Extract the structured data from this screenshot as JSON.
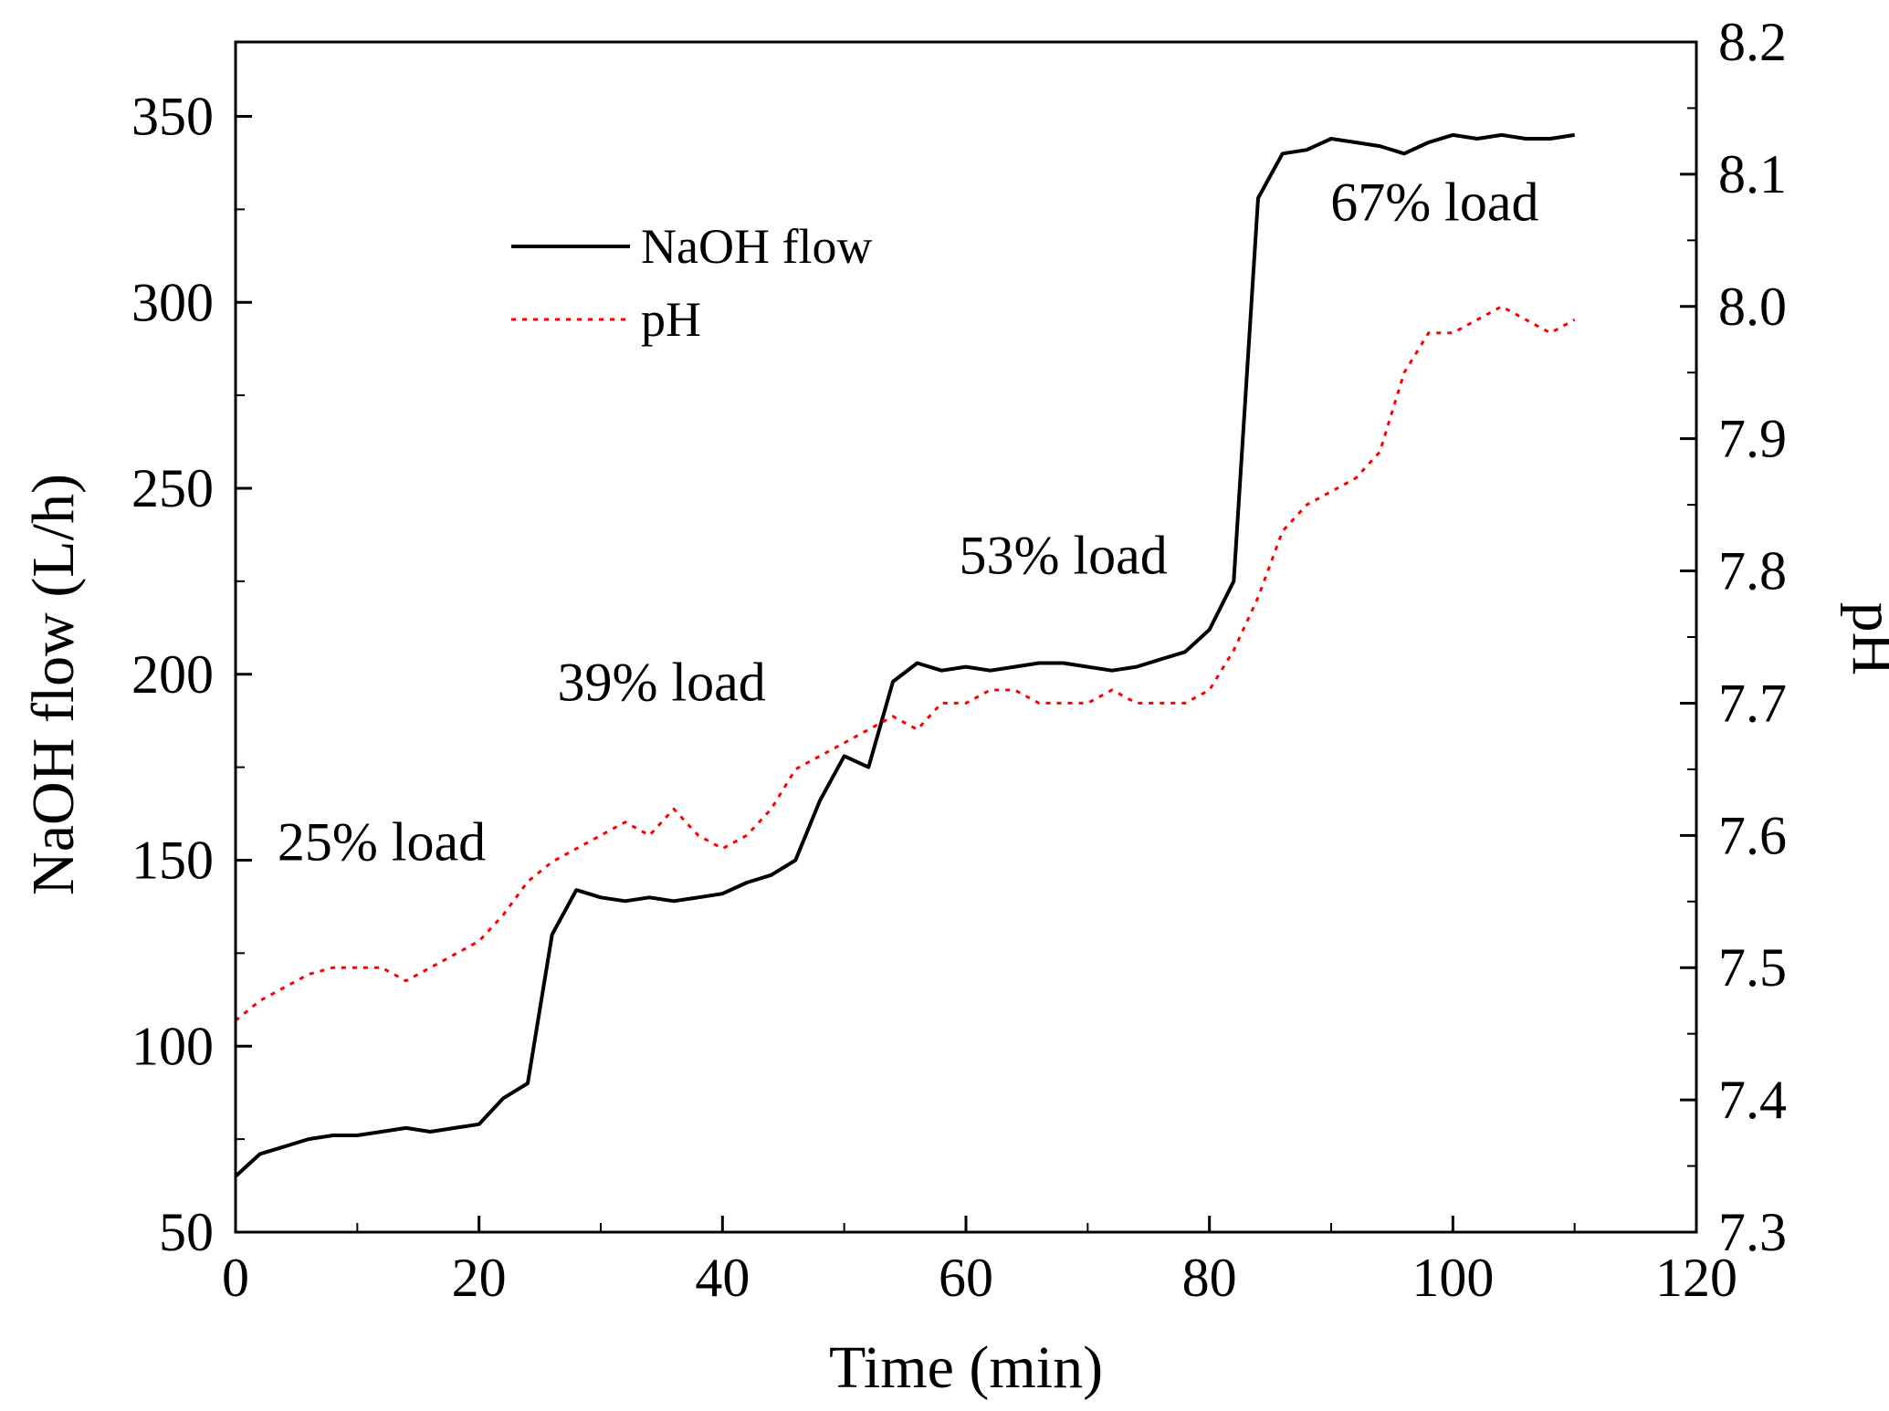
{
  "chart_data": {
    "type": "line",
    "title": "",
    "xlabel": "Time (min)",
    "ylabel": "NaOH flow (L/h)",
    "y2label": "pH",
    "xlim": [
      0,
      120
    ],
    "ylim": [
      50,
      370
    ],
    "y2lim": [
      7.3,
      8.2
    ],
    "grid": false,
    "legend_position": "top-left",
    "xticks": [
      "0",
      "20",
      "40",
      "60",
      "80",
      "100",
      "120"
    ],
    "yticks": [
      "50",
      "100",
      "150",
      "200",
      "250",
      "300",
      "350"
    ],
    "y2ticks": [
      "7.3",
      "7.4",
      "7.5",
      "7.6",
      "7.7",
      "7.8",
      "7.9",
      "8.0",
      "8.1",
      "8.2"
    ],
    "series": [
      {
        "name": "NaOH flow",
        "axis": "left",
        "color": "#000000",
        "style": "solid",
        "x": [
          0,
          2,
          4,
          6,
          8,
          10,
          12,
          14,
          16,
          18,
          20,
          22,
          24,
          26,
          28,
          30,
          32,
          34,
          36,
          38,
          40,
          42,
          44,
          46,
          48,
          50,
          52,
          54,
          56,
          58,
          60,
          62,
          64,
          66,
          68,
          70,
          72,
          74,
          76,
          78,
          80,
          82,
          84,
          86,
          88,
          90,
          92,
          94,
          96,
          98,
          100,
          102,
          104,
          106,
          108,
          110
        ],
        "y": [
          65,
          71,
          73,
          75,
          76,
          76,
          77,
          78,
          77,
          78,
          79,
          86,
          90,
          130,
          142,
          140,
          139,
          140,
          139,
          140,
          141,
          144,
          146,
          150,
          166,
          178,
          175,
          198,
          203,
          201,
          202,
          201,
          202,
          203,
          203,
          202,
          201,
          202,
          204,
          206,
          212,
          225,
          328,
          340,
          341,
          344,
          343,
          342,
          340,
          343,
          345,
          344,
          345,
          344,
          344,
          345
        ]
      },
      {
        "name": "pH",
        "axis": "right",
        "color": "#ff0000",
        "style": "dotted",
        "x": [
          0,
          2,
          4,
          6,
          8,
          10,
          12,
          14,
          16,
          18,
          20,
          22,
          24,
          26,
          28,
          30,
          32,
          34,
          36,
          38,
          40,
          42,
          44,
          46,
          48,
          50,
          52,
          54,
          56,
          58,
          60,
          62,
          64,
          66,
          68,
          70,
          72,
          74,
          76,
          78,
          80,
          82,
          84,
          86,
          88,
          90,
          92,
          94,
          96,
          98,
          100,
          102,
          104,
          106,
          108,
          110
        ],
        "y": [
          7.46,
          7.475,
          7.485,
          7.495,
          7.5,
          7.5,
          7.5,
          7.49,
          7.5,
          7.51,
          7.52,
          7.54,
          7.565,
          7.58,
          7.59,
          7.6,
          7.61,
          7.6,
          7.62,
          7.6,
          7.59,
          7.6,
          7.62,
          7.65,
          7.66,
          7.67,
          7.68,
          7.69,
          7.68,
          7.7,
          7.7,
          7.71,
          7.71,
          7.7,
          7.7,
          7.7,
          7.71,
          7.7,
          7.7,
          7.7,
          7.71,
          7.74,
          7.78,
          7.83,
          7.85,
          7.86,
          7.87,
          7.89,
          7.95,
          7.98,
          7.98,
          7.99,
          8.0,
          7.99,
          7.98,
          7.99
        ]
      }
    ],
    "annotations": [
      {
        "text": "25% load",
        "x": 12,
        "y": 150
      },
      {
        "text": "39% load",
        "x": 35,
        "y": 193
      },
      {
        "text": "53% load",
        "x": 68,
        "y": 227
      },
      {
        "text": "67% load",
        "x": 98.5,
        "y": 322
      }
    ]
  }
}
